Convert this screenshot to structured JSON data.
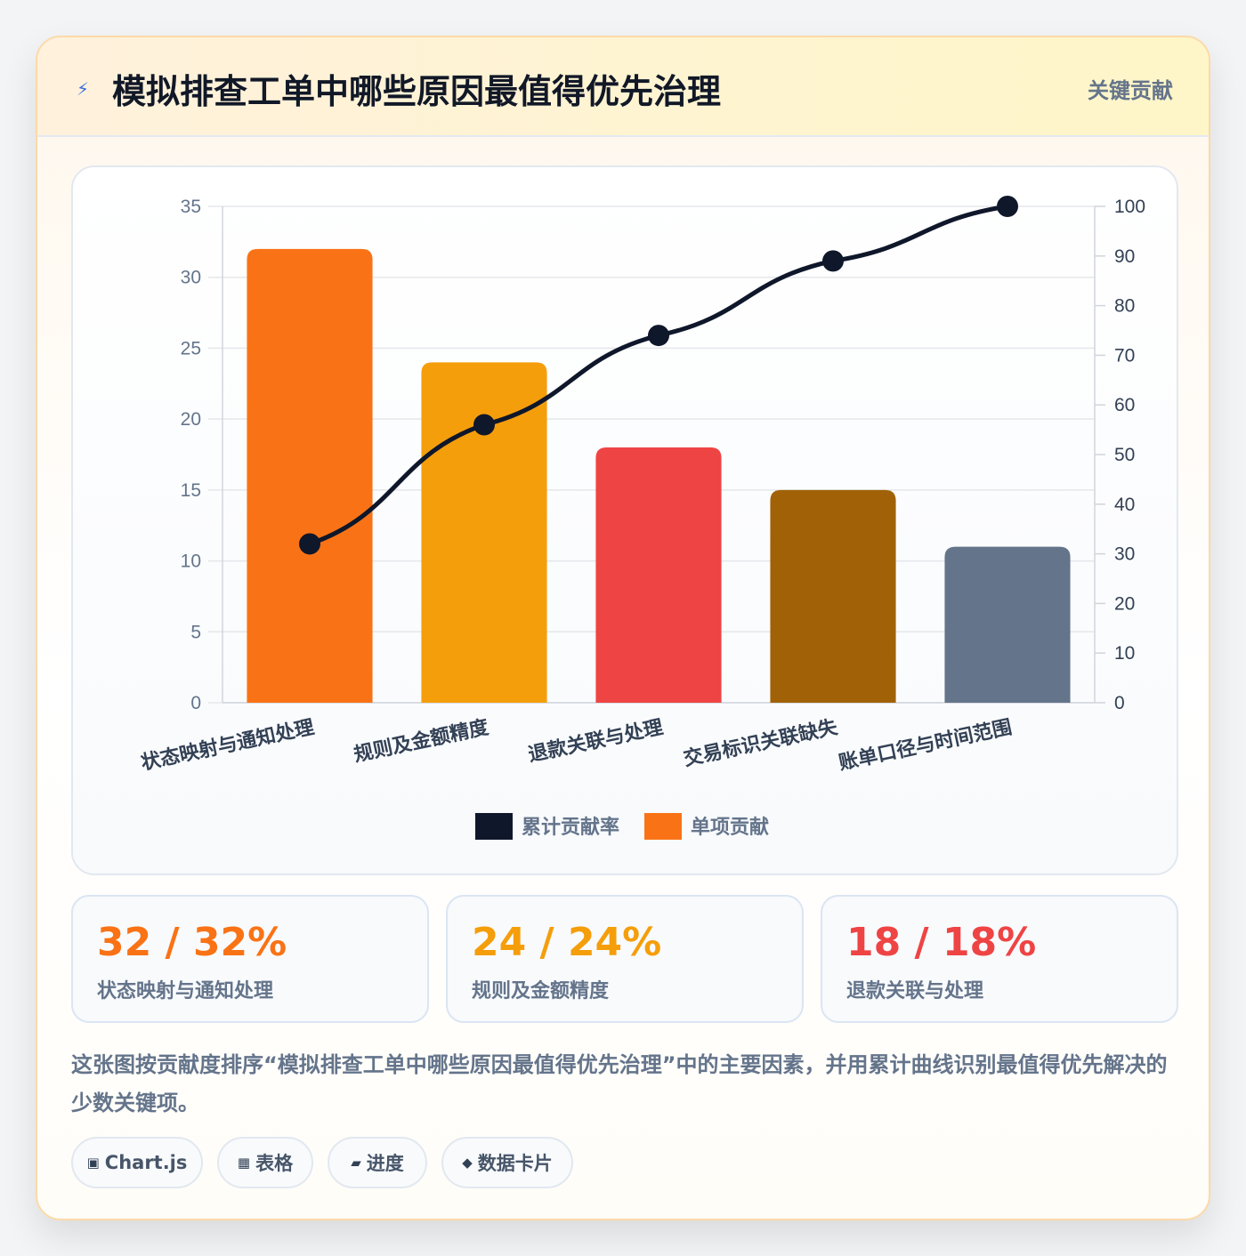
{
  "header": {
    "icon": "bolt-icon",
    "title": "模拟排查工单中哪些原因最值得优先治理",
    "badge": "关键贡献"
  },
  "chart_data": {
    "type": "bar",
    "categories": [
      "状态映射与通知处理",
      "规则及金额精度",
      "退款关联与处理",
      "交易标识关联缺失",
      "账单口径与时间范围"
    ],
    "values": [
      32,
      24,
      18,
      15,
      11
    ],
    "bar_colors": [
      "#f97316",
      "#f59e0b",
      "#ef4444",
      "#a16207",
      "#64748b"
    ],
    "series": [
      {
        "name": "累计贡献率",
        "type": "line",
        "axis": "right",
        "color": "#0f172a",
        "values": [
          32,
          56,
          74,
          89,
          100
        ]
      },
      {
        "name": "单项贡献",
        "type": "bar",
        "axis": "left",
        "color": "#f97316",
        "values": [
          32,
          24,
          18,
          15,
          11
        ]
      }
    ],
    "ylim": [
      0,
      35
    ],
    "y_ticks": [
      "0",
      "5",
      "10",
      "15",
      "20",
      "25",
      "30",
      "35"
    ],
    "y2lim": [
      0,
      100
    ],
    "y2_ticks": [
      "0",
      "10",
      "20",
      "30",
      "40",
      "50",
      "60",
      "70",
      "80",
      "90",
      "100"
    ],
    "legend": {
      "placement": "bottom",
      "items": [
        "累计贡献率",
        "单项贡献"
      ]
    },
    "grid": true
  },
  "stats": [
    {
      "value": "32 / 32%",
      "label": "状态映射与通知处理",
      "color": "#f97316"
    },
    {
      "value": "24 / 24%",
      "label": "规则及金额精度",
      "color": "#f59e0b"
    },
    {
      "value": "18 / 18%",
      "label": "退款关联与处理",
      "color": "#ef4444"
    }
  ],
  "description": "这张图按贡献度排序“模拟排查工单中哪些原因最值得优先治理”中的主要因素，并用累计曲线识别最值得优先解决的少数关键项。",
  "tags": [
    {
      "icon": "chart-box-icon",
      "glyph": "▣",
      "label": "Chart.js"
    },
    {
      "icon": "table-icon",
      "glyph": "▦",
      "label": "表格"
    },
    {
      "icon": "progress-icon",
      "glyph": "▰",
      "label": "进度"
    },
    {
      "icon": "data-card-icon",
      "glyph": "◆",
      "label": "数据卡片"
    }
  ]
}
